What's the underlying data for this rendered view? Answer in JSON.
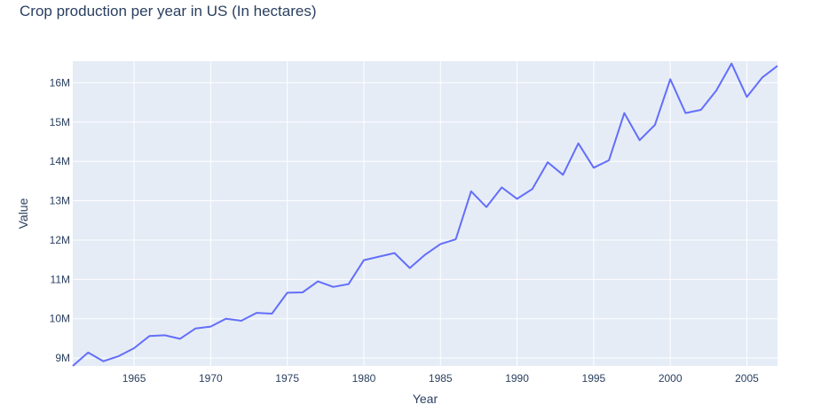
{
  "chart_data": {
    "type": "line",
    "title": "Crop production per year in US (In hectares)",
    "xlabel": "Year",
    "ylabel": "Value",
    "xlim": [
      1961,
      2007
    ],
    "ylim": [
      8.8,
      16.55
    ],
    "x_ticks": [
      1965,
      1970,
      1975,
      1980,
      1985,
      1990,
      1995,
      2000,
      2005
    ],
    "y_ticks": [
      9,
      10,
      11,
      12,
      13,
      14,
      15,
      16
    ],
    "y_tick_labels": [
      "9M",
      "10M",
      "11M",
      "12M",
      "13M",
      "14M",
      "15M",
      "16M"
    ],
    "grid": true,
    "legend": "none",
    "colors": {
      "line": "#636efa",
      "plot_bg": "#e5ecf6",
      "grid": "#ffffff",
      "text": "#2a3f5f"
    },
    "series": [
      {
        "x": [
          1961,
          1962,
          1963,
          1964,
          1965,
          1966,
          1967,
          1968,
          1969,
          1970,
          1971,
          1972,
          1973,
          1974,
          1975,
          1976,
          1977,
          1978,
          1979,
          1980,
          1981,
          1982,
          1983,
          1984,
          1985,
          1986,
          1987,
          1988,
          1989,
          1990,
          1991,
          1992,
          1993,
          1994,
          1995,
          1996,
          1997,
          1998,
          1999,
          2000,
          2001,
          2002,
          2003,
          2004,
          2005,
          2006,
          2007
        ],
        "values": [
          8.8,
          9.14,
          8.92,
          9.05,
          9.25,
          9.56,
          9.58,
          9.49,
          9.75,
          9.8,
          10.0,
          9.95,
          10.15,
          10.13,
          10.66,
          10.67,
          10.95,
          10.81,
          10.88,
          11.49,
          11.58,
          11.67,
          11.29,
          11.63,
          11.9,
          12.02,
          13.24,
          12.84,
          13.34,
          13.05,
          13.3,
          13.98,
          13.66,
          14.46,
          13.84,
          14.03,
          15.23,
          14.54,
          14.93,
          16.09,
          15.23,
          15.31,
          15.8,
          16.49,
          15.64,
          16.13,
          16.43
        ]
      }
    ]
  }
}
